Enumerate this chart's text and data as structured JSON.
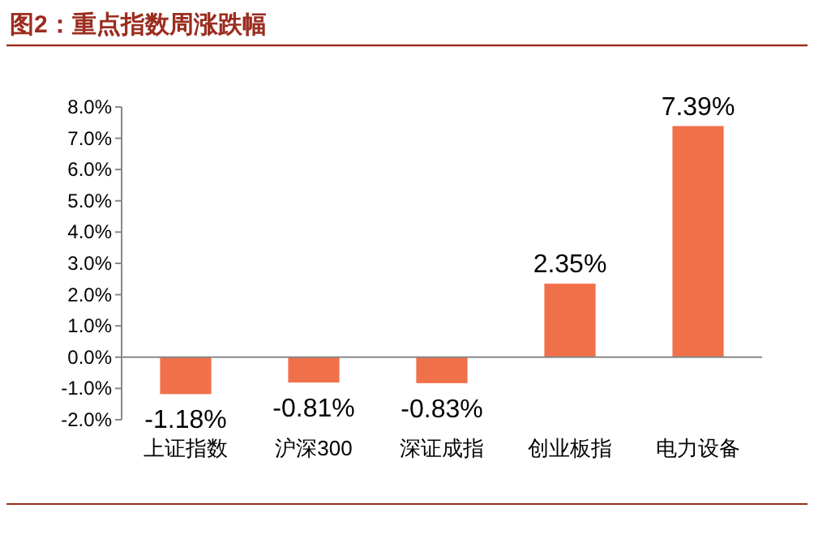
{
  "chart_data": {
    "type": "bar",
    "title": "图2：重点指数周涨跌幅",
    "categories": [
      "上证指数",
      "沪深300",
      "深证成指",
      "创业板指",
      "电力设备"
    ],
    "values": [
      -1.18,
      -0.81,
      -0.83,
      2.35,
      7.39
    ],
    "value_labels": [
      "-1.18%",
      "-0.81%",
      "-0.83%",
      "2.35%",
      "7.39%"
    ],
    "color": "#f0704a",
    "ylim": [
      -2,
      8
    ],
    "yticks": [
      {
        "value": -2,
        "label": "-2.0%"
      },
      {
        "value": -1,
        "label": "-1.0%"
      },
      {
        "value": 0,
        "label": "0.0%"
      },
      {
        "value": 1,
        "label": "1.0%"
      },
      {
        "value": 2,
        "label": "2.0%"
      },
      {
        "value": 3,
        "label": "3.0%"
      },
      {
        "value": 4,
        "label": "4.0%"
      },
      {
        "value": 5,
        "label": "5.0%"
      },
      {
        "value": 6,
        "label": "6.0%"
      },
      {
        "value": 7,
        "label": "7.0%"
      },
      {
        "value": 8,
        "label": "8.0%"
      }
    ],
    "data_labels": false
  }
}
